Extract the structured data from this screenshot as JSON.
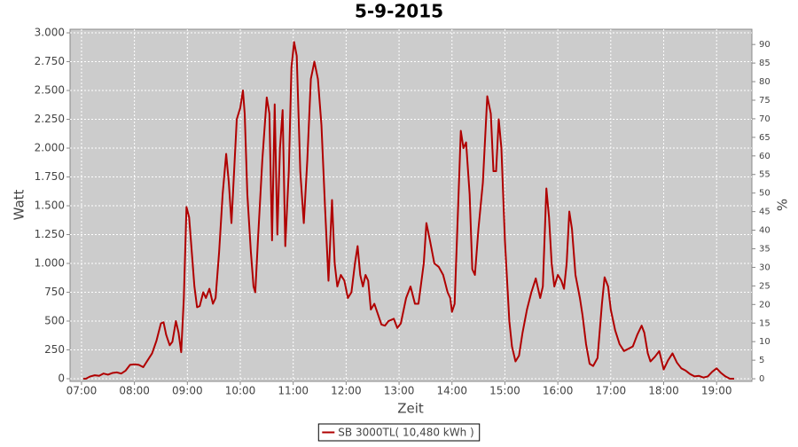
{
  "chart_data": {
    "type": "line",
    "title": "5-9-2015",
    "x_label": "Zeit",
    "y_label": "Watt",
    "y2_label": "%",
    "grid": true,
    "legend": "bottom",
    "xlim": [
      407,
      1180
    ],
    "xticks": [
      {
        "value": 420,
        "label": "07:00"
      },
      {
        "value": 480,
        "label": "08:00"
      },
      {
        "value": 540,
        "label": "09:00"
      },
      {
        "value": 600,
        "label": "10:00"
      },
      {
        "value": 660,
        "label": "11:00"
      },
      {
        "value": 720,
        "label": "12:00"
      },
      {
        "value": 780,
        "label": "13:00"
      },
      {
        "value": 840,
        "label": "14:00"
      },
      {
        "value": 900,
        "label": "15:00"
      },
      {
        "value": 960,
        "label": "16:00"
      },
      {
        "value": 1020,
        "label": "17:00"
      },
      {
        "value": 1080,
        "label": "18:00"
      },
      {
        "value": 1140,
        "label": "19:00"
      }
    ],
    "ylim": [
      -23,
      3031
    ],
    "yticks": [
      0,
      250,
      500,
      750,
      {
        "value": 1000,
        "label": "1.000"
      },
      {
        "value": 1250,
        "label": "1.250"
      },
      {
        "value": 1500,
        "label": "1.500"
      },
      {
        "value": 1750,
        "label": "1.750"
      },
      {
        "value": 2000,
        "label": "2.000"
      },
      {
        "value": 2250,
        "label": "2.250"
      },
      {
        "value": 2500,
        "label": "2.500"
      },
      {
        "value": 2750,
        "label": "2.750"
      },
      {
        "value": 3000,
        "label": "3.000"
      }
    ],
    "y2lim": [
      -0.7,
      94.1
    ],
    "y2ticks": [
      0,
      5,
      10,
      15,
      20,
      25,
      30,
      35,
      40,
      45,
      50,
      55,
      60,
      65,
      70,
      75,
      80,
      85,
      90
    ],
    "x": [
      422,
      425,
      430,
      435,
      440,
      445,
      450,
      455,
      460,
      465,
      470,
      475,
      480,
      485,
      490,
      495,
      500,
      505,
      510,
      513,
      516,
      520,
      523,
      527,
      530,
      533,
      536,
      539,
      542,
      545,
      548,
      551,
      554,
      558,
      561,
      565,
      569,
      572,
      576,
      580,
      584,
      587,
      590,
      593,
      596,
      600,
      603,
      605,
      608,
      612,
      615,
      617,
      620,
      625,
      630,
      633,
      636,
      639,
      642,
      645,
      648,
      651,
      655,
      658,
      661,
      664,
      668,
      672,
      676,
      680,
      684,
      688,
      692,
      696,
      700,
      702,
      704,
      707,
      710,
      714,
      718,
      722,
      726,
      730,
      733,
      736,
      739,
      742,
      745,
      748,
      752,
      756,
      760,
      764,
      768,
      774,
      778,
      782,
      788,
      793,
      798,
      802,
      808,
      811,
      815,
      820,
      825,
      830,
      835,
      838,
      840,
      843,
      847,
      850,
      853,
      856,
      860,
      863,
      866,
      870,
      875,
      880,
      884,
      887,
      890,
      893,
      896,
      900,
      905,
      908,
      912,
      916,
      920,
      925,
      930,
      935,
      940,
      943,
      947,
      950,
      953,
      956,
      960,
      964,
      967,
      970,
      973,
      976,
      980,
      985,
      988,
      992,
      996,
      1000,
      1005,
      1010,
      1013,
      1017,
      1020,
      1025,
      1030,
      1035,
      1040,
      1045,
      1050,
      1055,
      1058,
      1062,
      1065,
      1070,
      1075,
      1080,
      1085,
      1090,
      1095,
      1100,
      1105,
      1110,
      1115,
      1120,
      1125,
      1130,
      1135,
      1140,
      1145,
      1150,
      1155,
      1160
    ],
    "series": [
      {
        "name": "SB 3000TL( 10,480 kWh )",
        "color": "#b00000",
        "values": [
          0,
          0,
          20,
          30,
          25,
          45,
          35,
          50,
          55,
          45,
          70,
          120,
          125,
          120,
          100,
          160,
          220,
          330,
          480,
          490,
          380,
          290,
          320,
          500,
          400,
          230,
          700,
          1490,
          1400,
          1100,
          800,
          620,
          630,
          750,
          700,
          780,
          650,
          700,
          1100,
          1600,
          1950,
          1700,
          1350,
          1800,
          2250,
          2350,
          2500,
          2300,
          1600,
          1100,
          800,
          750,
          1200,
          1900,
          2440,
          2300,
          1200,
          2380,
          1250,
          2000,
          2330,
          1150,
          1800,
          2700,
          2920,
          2800,
          1800,
          1350,
          1900,
          2600,
          2750,
          2600,
          2200,
          1500,
          850,
          1200,
          1550,
          1000,
          800,
          900,
          850,
          700,
          750,
          1000,
          1150,
          900,
          800,
          900,
          850,
          600,
          650,
          560,
          470,
          460,
          500,
          520,
          440,
          480,
          700,
          800,
          650,
          650,
          1000,
          1350,
          1200,
          1000,
          970,
          900,
          750,
          700,
          580,
          650,
          1500,
          2150,
          2000,
          2050,
          1600,
          950,
          900,
          1300,
          1700,
          2450,
          2300,
          1800,
          1800,
          2250,
          2000,
          1200,
          500,
          280,
          150,
          200,
          400,
          600,
          750,
          870,
          700,
          800,
          1650,
          1400,
          1000,
          800,
          900,
          850,
          780,
          1000,
          1450,
          1300,
          900,
          700,
          550,
          300,
          130,
          110,
          180,
          650,
          880,
          800,
          600,
          420,
          300,
          240,
          260,
          280,
          380,
          460,
          400,
          220,
          150,
          190,
          240,
          80,
          160,
          220,
          140,
          90,
          70,
          40,
          20,
          25,
          10,
          20,
          60,
          90,
          50,
          20,
          0,
          0
        ]
      }
    ]
  }
}
